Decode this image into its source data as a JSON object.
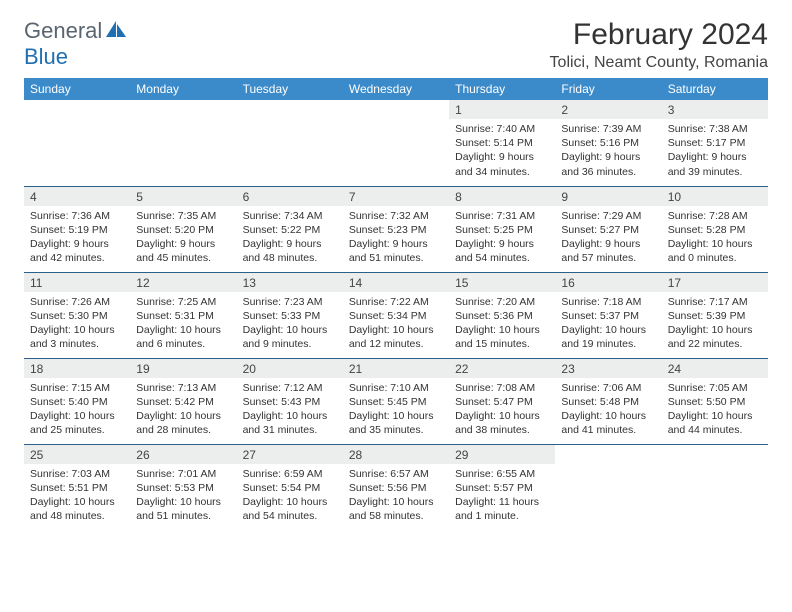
{
  "brand": {
    "text1": "General",
    "text2": "Blue"
  },
  "title": "February 2024",
  "location": "Tolici, Neamt County, Romania",
  "colors": {
    "header_bg": "#3b8aca",
    "header_fg": "#ffffff",
    "daynum_bg": "#eceded",
    "rule": "#2b5f8c"
  },
  "dayNames": [
    "Sunday",
    "Monday",
    "Tuesday",
    "Wednesday",
    "Thursday",
    "Friday",
    "Saturday"
  ],
  "weeks": [
    [
      null,
      null,
      null,
      null,
      {
        "n": "1",
        "sr": "7:40 AM",
        "ss": "5:14 PM",
        "dl": "9 hours and 34 minutes."
      },
      {
        "n": "2",
        "sr": "7:39 AM",
        "ss": "5:16 PM",
        "dl": "9 hours and 36 minutes."
      },
      {
        "n": "3",
        "sr": "7:38 AM",
        "ss": "5:17 PM",
        "dl": "9 hours and 39 minutes."
      }
    ],
    [
      {
        "n": "4",
        "sr": "7:36 AM",
        "ss": "5:19 PM",
        "dl": "9 hours and 42 minutes."
      },
      {
        "n": "5",
        "sr": "7:35 AM",
        "ss": "5:20 PM",
        "dl": "9 hours and 45 minutes."
      },
      {
        "n": "6",
        "sr": "7:34 AM",
        "ss": "5:22 PM",
        "dl": "9 hours and 48 minutes."
      },
      {
        "n": "7",
        "sr": "7:32 AM",
        "ss": "5:23 PM",
        "dl": "9 hours and 51 minutes."
      },
      {
        "n": "8",
        "sr": "7:31 AM",
        "ss": "5:25 PM",
        "dl": "9 hours and 54 minutes."
      },
      {
        "n": "9",
        "sr": "7:29 AM",
        "ss": "5:27 PM",
        "dl": "9 hours and 57 minutes."
      },
      {
        "n": "10",
        "sr": "7:28 AM",
        "ss": "5:28 PM",
        "dl": "10 hours and 0 minutes."
      }
    ],
    [
      {
        "n": "11",
        "sr": "7:26 AM",
        "ss": "5:30 PM",
        "dl": "10 hours and 3 minutes."
      },
      {
        "n": "12",
        "sr": "7:25 AM",
        "ss": "5:31 PM",
        "dl": "10 hours and 6 minutes."
      },
      {
        "n": "13",
        "sr": "7:23 AM",
        "ss": "5:33 PM",
        "dl": "10 hours and 9 minutes."
      },
      {
        "n": "14",
        "sr": "7:22 AM",
        "ss": "5:34 PM",
        "dl": "10 hours and 12 minutes."
      },
      {
        "n": "15",
        "sr": "7:20 AM",
        "ss": "5:36 PM",
        "dl": "10 hours and 15 minutes."
      },
      {
        "n": "16",
        "sr": "7:18 AM",
        "ss": "5:37 PM",
        "dl": "10 hours and 19 minutes."
      },
      {
        "n": "17",
        "sr": "7:17 AM",
        "ss": "5:39 PM",
        "dl": "10 hours and 22 minutes."
      }
    ],
    [
      {
        "n": "18",
        "sr": "7:15 AM",
        "ss": "5:40 PM",
        "dl": "10 hours and 25 minutes."
      },
      {
        "n": "19",
        "sr": "7:13 AM",
        "ss": "5:42 PM",
        "dl": "10 hours and 28 minutes."
      },
      {
        "n": "20",
        "sr": "7:12 AM",
        "ss": "5:43 PM",
        "dl": "10 hours and 31 minutes."
      },
      {
        "n": "21",
        "sr": "7:10 AM",
        "ss": "5:45 PM",
        "dl": "10 hours and 35 minutes."
      },
      {
        "n": "22",
        "sr": "7:08 AM",
        "ss": "5:47 PM",
        "dl": "10 hours and 38 minutes."
      },
      {
        "n": "23",
        "sr": "7:06 AM",
        "ss": "5:48 PM",
        "dl": "10 hours and 41 minutes."
      },
      {
        "n": "24",
        "sr": "7:05 AM",
        "ss": "5:50 PM",
        "dl": "10 hours and 44 minutes."
      }
    ],
    [
      {
        "n": "25",
        "sr": "7:03 AM",
        "ss": "5:51 PM",
        "dl": "10 hours and 48 minutes."
      },
      {
        "n": "26",
        "sr": "7:01 AM",
        "ss": "5:53 PM",
        "dl": "10 hours and 51 minutes."
      },
      {
        "n": "27",
        "sr": "6:59 AM",
        "ss": "5:54 PM",
        "dl": "10 hours and 54 minutes."
      },
      {
        "n": "28",
        "sr": "6:57 AM",
        "ss": "5:56 PM",
        "dl": "10 hours and 58 minutes."
      },
      {
        "n": "29",
        "sr": "6:55 AM",
        "ss": "5:57 PM",
        "dl": "11 hours and 1 minute."
      },
      null,
      null
    ]
  ],
  "labels": {
    "sunrise": "Sunrise: ",
    "sunset": "Sunset: ",
    "daylight": "Daylight: "
  }
}
